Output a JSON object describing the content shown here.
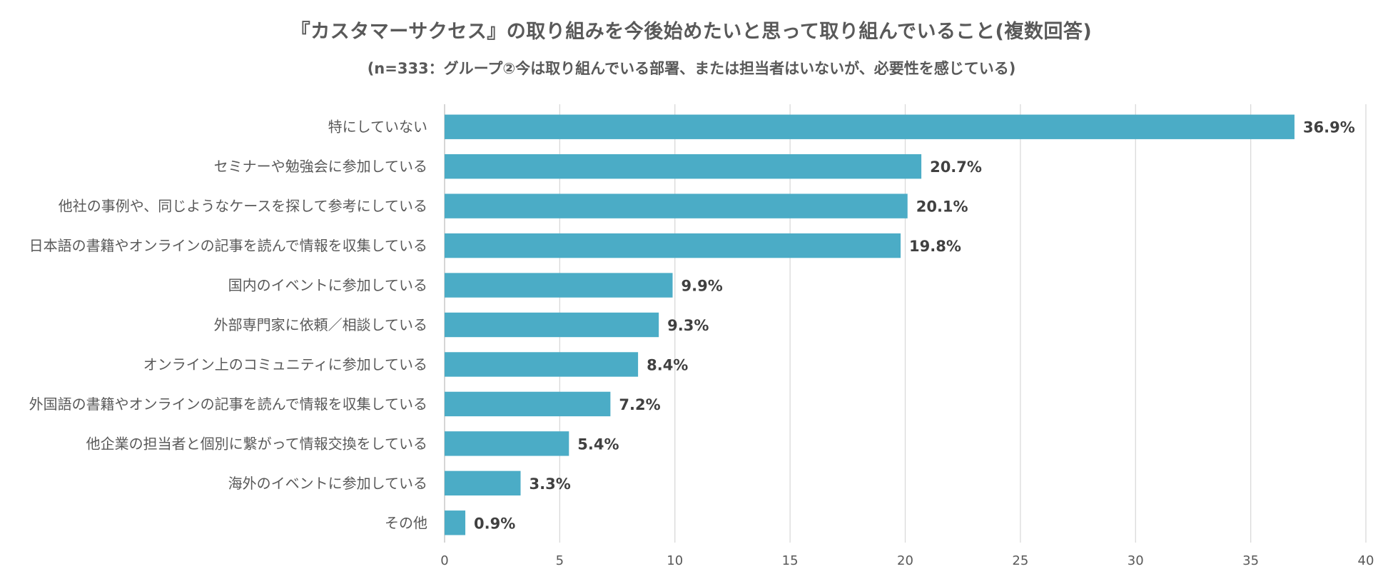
{
  "title": "『カスタマーサクセス』の取り組みを今後始めたいと思って取り組んでいること(複数回答)",
  "subtitle": "(n=333：グループ②今は取り組んでいる部署、または担当者はいないが、必要性を感じている)",
  "colors": {
    "bar": "#4BACC6",
    "grid": "#D9D9D9",
    "text": "#595959",
    "data_label": "#404040"
  },
  "chart_data": {
    "type": "bar",
    "orientation": "horizontal",
    "categories": [
      "特にしていない",
      "セミナーや勉強会に参加している",
      "他社の事例や、同じようなケースを探して参考にしている",
      "日本語の書籍やオンラインの記事を読んで情報を収集している",
      "国内のイベントに参加している",
      "外部専門家に依頼／相談している",
      "オンライン上のコミュニティに参加している",
      "外国語の書籍やオンラインの記事を読んで情報を収集している",
      "他企業の担当者と個別に繋がって情報交換をしている",
      "海外のイベントに参加している",
      "その他"
    ],
    "values": [
      36.9,
      20.7,
      20.1,
      19.8,
      9.9,
      9.3,
      8.4,
      7.2,
      5.4,
      3.3,
      0.9
    ],
    "data_labels": [
      "36.9%",
      "20.7%",
      "20.1%",
      "19.8%",
      "9.9%",
      "9.3%",
      "8.4%",
      "7.2%",
      "5.4%",
      "3.3%",
      "0.9%"
    ],
    "x_ticks": [
      "0",
      "5",
      "10",
      "15",
      "20",
      "25",
      "30",
      "35",
      "40"
    ],
    "xlim": [
      0,
      40
    ],
    "grid": true,
    "legend": "none"
  }
}
